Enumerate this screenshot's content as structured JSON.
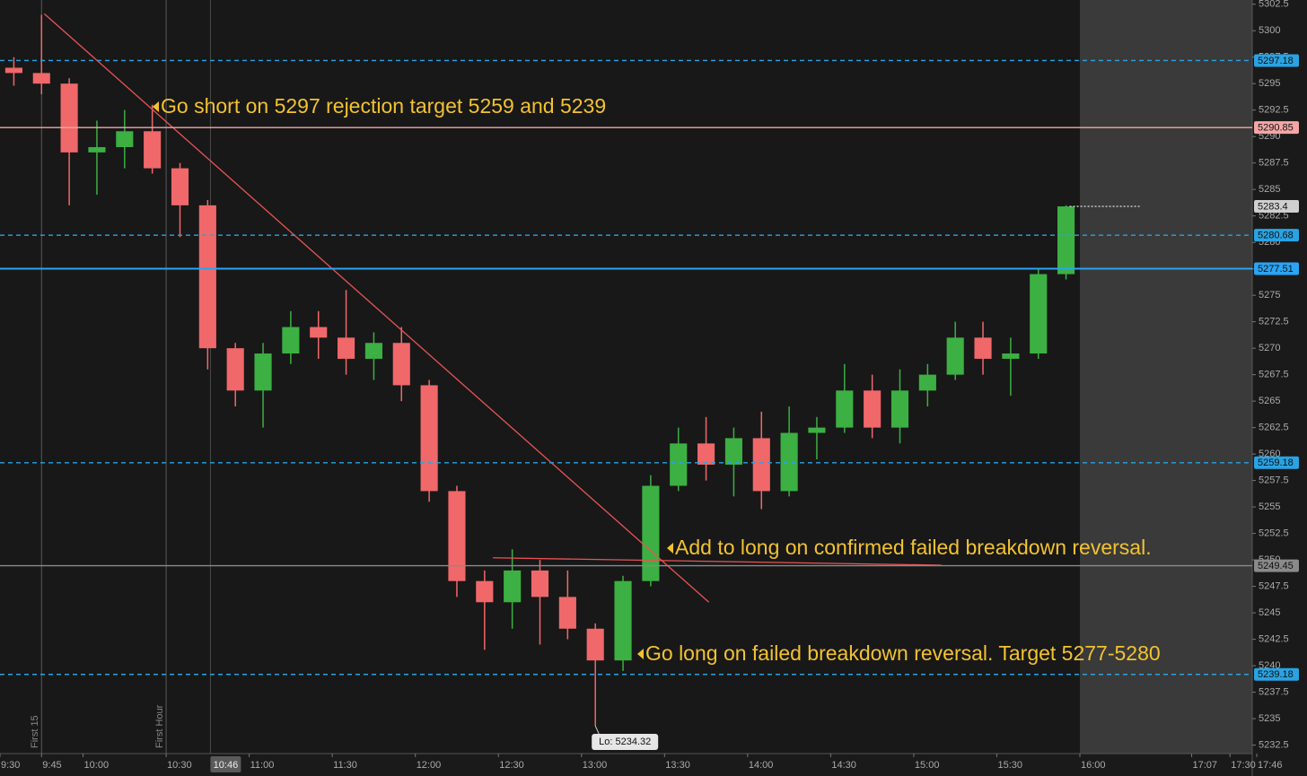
{
  "chart_data": {
    "type": "candlestick",
    "x": [
      "9:30",
      "9:40",
      "9:50",
      "10:00",
      "10:10",
      "10:20",
      "10:30",
      "10:40",
      "10:50",
      "11:00",
      "11:10",
      "11:20",
      "11:30",
      "11:40",
      "11:50",
      "12:00",
      "12:10",
      "12:20",
      "12:30",
      "12:40",
      "12:50",
      "13:00",
      "13:10",
      "13:20",
      "13:30",
      "13:40",
      "13:50",
      "14:00",
      "14:10",
      "14:20",
      "14:30",
      "14:40",
      "14:50",
      "15:00",
      "15:10",
      "15:20",
      "15:30",
      "15:40",
      "15:50"
    ],
    "open": [
      5296.5,
      5296.0,
      5295.0,
      5288.5,
      5289.0,
      5290.5,
      5287.0,
      5283.5,
      5270.0,
      5266.0,
      5269.5,
      5272.0,
      5271.0,
      5269.0,
      5270.5,
      5266.5,
      5256.5,
      5248.0,
      5246.0,
      5249.0,
      5246.5,
      5243.5,
      5240.5,
      5248.0,
      5257.0,
      5261.0,
      5259.0,
      5261.5,
      5256.5,
      5262.0,
      5262.5,
      5266.0,
      5262.5,
      5266.0,
      5267.5,
      5271.0,
      5269.0,
      5269.5,
      5277.0
    ],
    "high": [
      5297.5,
      5301.5,
      5295.5,
      5291.5,
      5292.5,
      5293.0,
      5287.5,
      5284.0,
      5270.5,
      5270.5,
      5273.5,
      5273.5,
      5275.5,
      5271.5,
      5272.0,
      5267.0,
      5257.0,
      5249.0,
      5251.0,
      5250.0,
      5249.0,
      5244.0,
      5248.5,
      5258.0,
      5262.5,
      5263.5,
      5262.5,
      5264.0,
      5264.5,
      5263.5,
      5268.5,
      5267.5,
      5268.0,
      5268.5,
      5272.5,
      5272.5,
      5271.0,
      5277.5,
      5283.5
    ],
    "low": [
      5294.8,
      5294.0,
      5283.5,
      5284.5,
      5287.0,
      5286.5,
      5280.5,
      5268.0,
      5264.5,
      5262.5,
      5268.5,
      5269.0,
      5267.5,
      5267.0,
      5265.0,
      5255.5,
      5246.5,
      5241.5,
      5243.5,
      5242.0,
      5242.5,
      5234.32,
      5239.5,
      5247.5,
      5256.5,
      5257.5,
      5256.0,
      5254.8,
      5256.0,
      5259.5,
      5262.0,
      5261.5,
      5261.0,
      5264.5,
      5267.0,
      5267.5,
      5265.5,
      5269.0,
      5276.5
    ],
    "close": [
      5296.0,
      5295.0,
      5288.5,
      5289.0,
      5290.5,
      5287.0,
      5283.5,
      5270.0,
      5266.0,
      5269.5,
      5272.0,
      5271.0,
      5269.0,
      5270.5,
      5266.5,
      5256.5,
      5248.0,
      5246.0,
      5249.0,
      5246.5,
      5243.5,
      5240.5,
      5248.0,
      5257.0,
      5261.0,
      5259.0,
      5261.5,
      5256.5,
      5262.0,
      5262.5,
      5266.0,
      5262.5,
      5266.0,
      5267.5,
      5271.0,
      5269.0,
      5269.5,
      5277.0,
      5283.4
    ],
    "colors": {
      "up": "#3cb043",
      "down": "#f0686a"
    },
    "xlim": [
      "9:30",
      "17:46"
    ],
    "xticks": [
      "9:30",
      "9:45",
      "10:00",
      "10:30",
      "11:00",
      "11:30",
      "12:00",
      "12:30",
      "13:00",
      "13:30",
      "14:00",
      "14:30",
      "15:00",
      "15:30",
      "16:00",
      "17:07",
      "17:30",
      "17:46"
    ],
    "shaded_from": "16:00",
    "ylim": [
      5231.7,
      5302.9
    ],
    "yticks": [
      5232.5,
      5235,
      5237.5,
      5240,
      5242.5,
      5245,
      5247.5,
      5250,
      5252.5,
      5255,
      5257.5,
      5260,
      5262.5,
      5265,
      5267.5,
      5270,
      5272.5,
      5275,
      5277.5,
      5280,
      5282.5,
      5285,
      5287.5,
      5290,
      5292.5,
      5295,
      5297.5,
      5300,
      5302.5
    ],
    "levels": [
      {
        "price": 5297.18,
        "color": "#29a3e3",
        "style": "dashed"
      },
      {
        "price": 5290.85,
        "color": "#f4a6a6",
        "style": "solid"
      },
      {
        "price": 5283.4,
        "color": "#cfcfcf",
        "style": "dotted"
      },
      {
        "price": 5280.68,
        "color": "#29a3e3",
        "style": "dashed"
      },
      {
        "price": 5277.51,
        "color": "#2aa4f4",
        "style": "solid"
      },
      {
        "price": 5259.18,
        "color": "#29a3e3",
        "style": "dashed"
      },
      {
        "price": 5249.45,
        "color": "#8a8a8a",
        "style": "solid"
      },
      {
        "price": 5239.18,
        "color": "#29a3e3",
        "style": "dashed"
      }
    ],
    "trendlines": [
      {
        "x": [
          "9:46",
          "13:46"
        ],
        "y": [
          5301.6,
          5246.0
        ],
        "color": "#e85454"
      },
      {
        "x": [
          "12:28",
          "15:10"
        ],
        "y": [
          5250.2,
          5249.5
        ],
        "color": "#e85454"
      }
    ],
    "markers": [
      {
        "x": "9:45",
        "label": "First 15"
      },
      {
        "x": "10:30",
        "label": "First Hour"
      }
    ],
    "crosshair": "10:46",
    "low_label": "Lo: 5234.32",
    "annotation_color": "#f2c230",
    "annotations": [
      "Go short on 5297 rejection target 5259 and 5239",
      "Add to long on confirmed failed breakdown reversal.",
      "Go long on failed breakdown reversal. Target 5277-5280"
    ]
  }
}
